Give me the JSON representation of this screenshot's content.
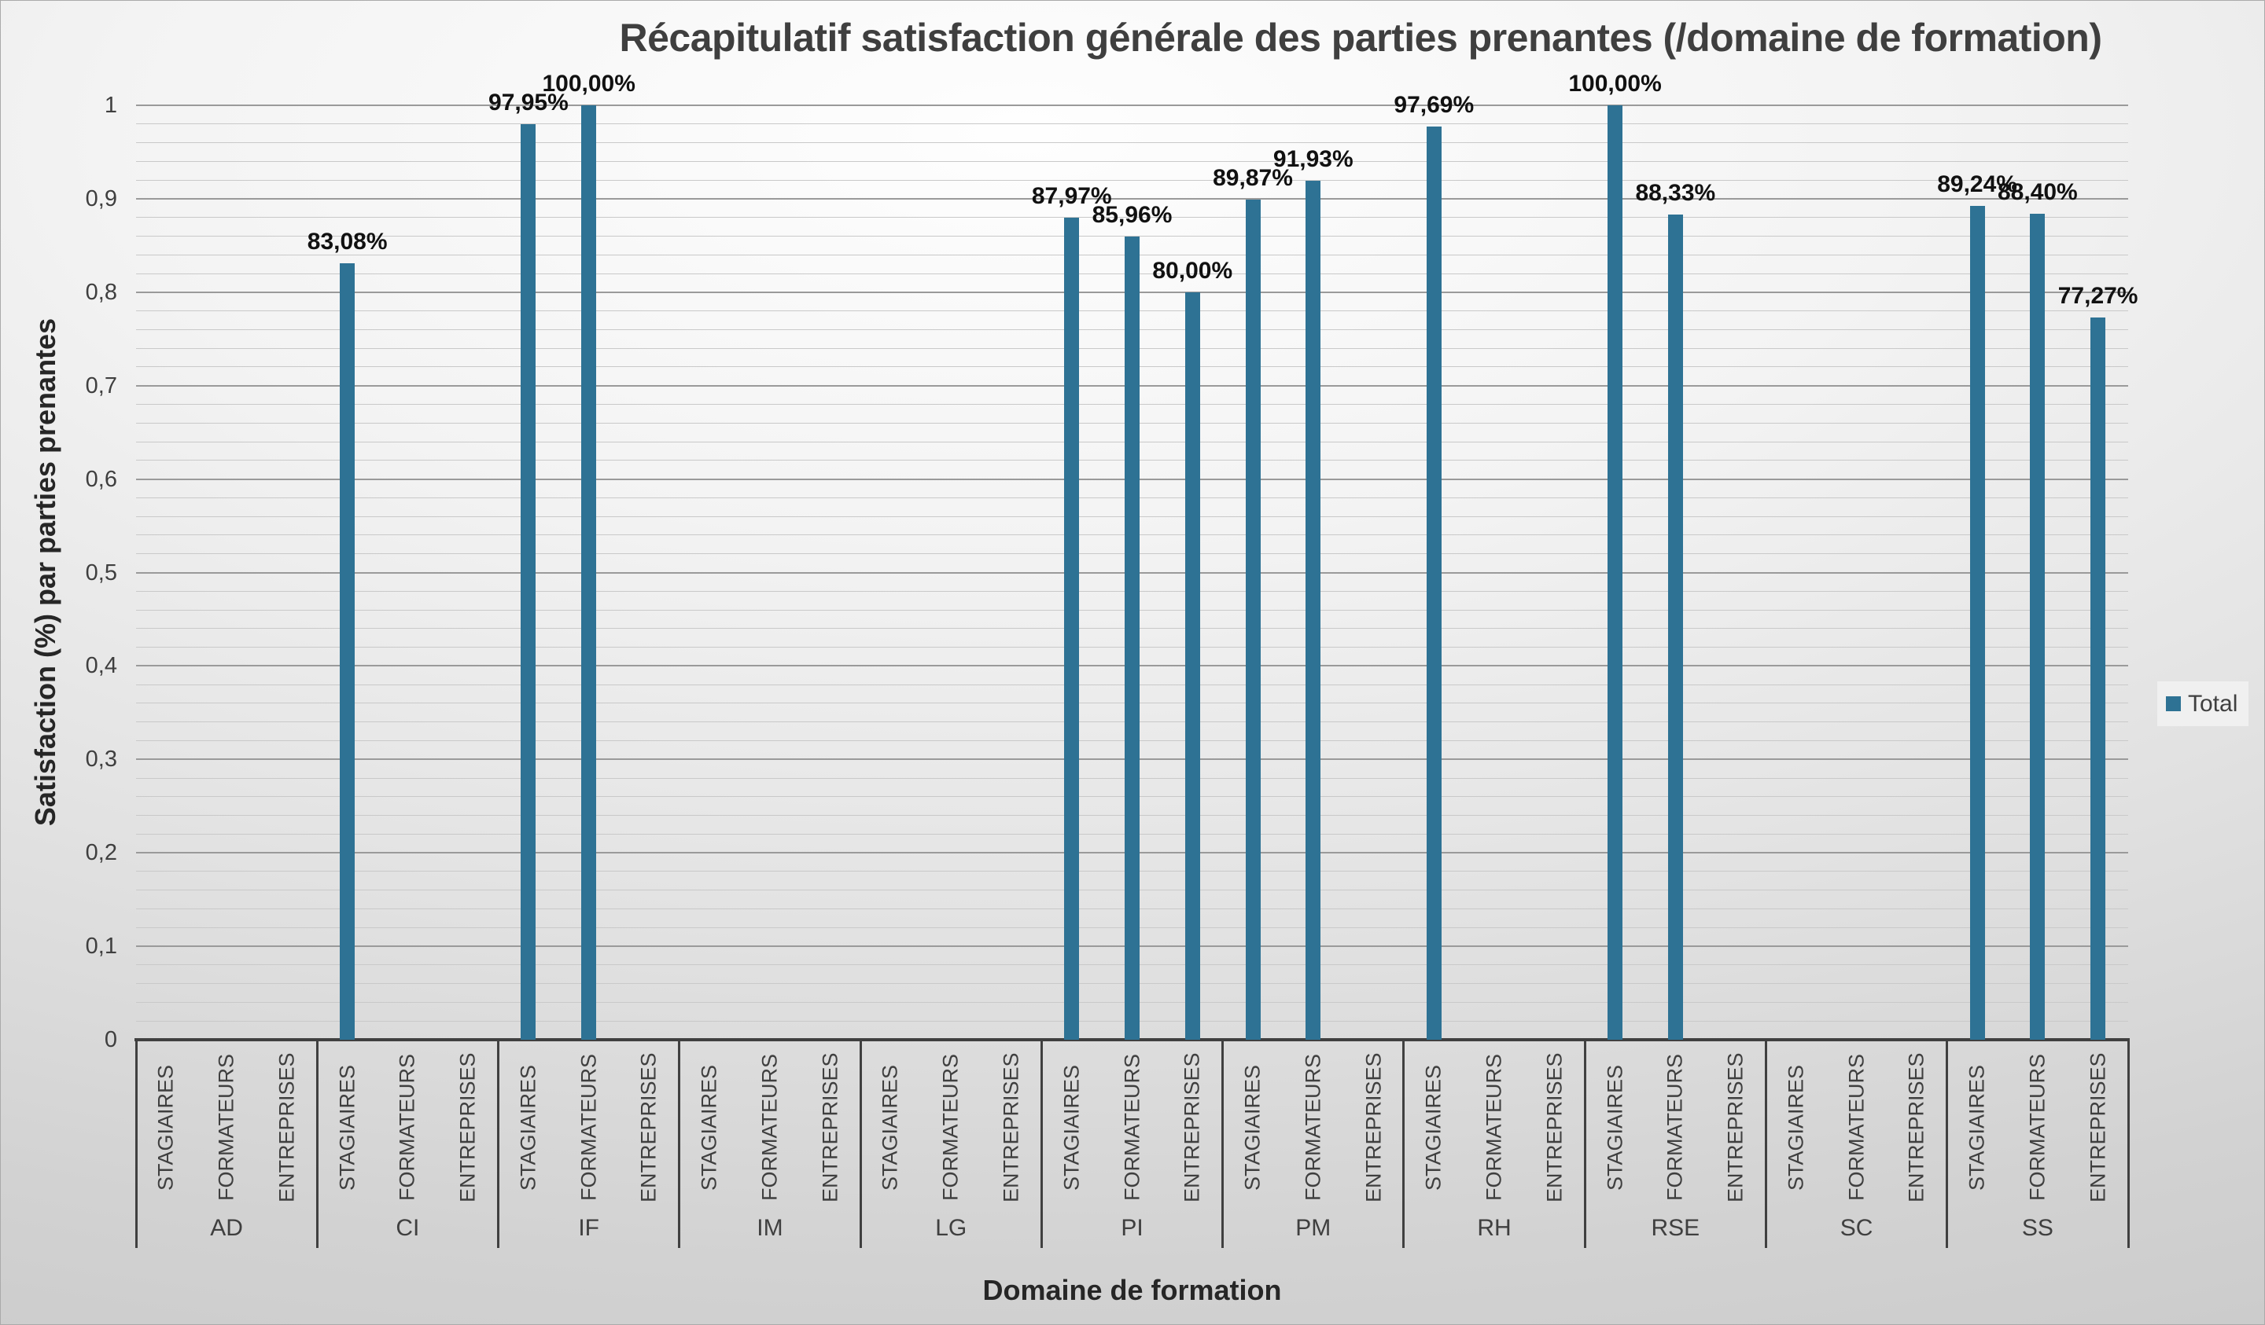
{
  "chart_data": {
    "type": "bar",
    "title": "Récapitulatif satisfaction générale des parties prenantes (/domaine de formation)",
    "xlabel": "Domaine de formation",
    "ylabel": "Satisfaction (%) par parties prenantes",
    "ylim": [
      0,
      1
    ],
    "y_major_unit": 0.1,
    "y_minor_unit": 0.02,
    "grid": true,
    "y_tick_labels": [
      "0",
      "0,1",
      "0,2",
      "0,3",
      "0,4",
      "0,5",
      "0,6",
      "0,7",
      "0,8",
      "0,9",
      "1"
    ],
    "bar_color": "#2E7294",
    "legend": {
      "position": "right",
      "entries": [
        {
          "label": "Total",
          "color": "#2E7294"
        }
      ]
    },
    "subcategories": [
      "STAGIAIRES",
      "FORMATEURS",
      "ENTREPRISES"
    ],
    "groups": [
      {
        "domain": "AD",
        "values": [
          null,
          null,
          null
        ],
        "labels": [
          "",
          "",
          ""
        ]
      },
      {
        "domain": "CI",
        "values": [
          0.8308,
          null,
          null
        ],
        "labels": [
          "83,08%",
          "",
          ""
        ]
      },
      {
        "domain": "IF",
        "values": [
          0.9795,
          1.0,
          null
        ],
        "labels": [
          "97,95%",
          "100,00%",
          ""
        ]
      },
      {
        "domain": "IM",
        "values": [
          null,
          null,
          null
        ],
        "labels": [
          "",
          "",
          ""
        ]
      },
      {
        "domain": "LG",
        "values": [
          null,
          null,
          null
        ],
        "labels": [
          "",
          "",
          ""
        ]
      },
      {
        "domain": "PI",
        "values": [
          0.8797,
          0.8596,
          0.8
        ],
        "labels": [
          "87,97%",
          "85,96%",
          "80,00%"
        ]
      },
      {
        "domain": "PM",
        "values": [
          0.8987,
          0.9193,
          null
        ],
        "labels": [
          "89,87%",
          "91,93%",
          ""
        ]
      },
      {
        "domain": "RH",
        "values": [
          0.9769,
          null,
          null
        ],
        "labels": [
          "97,69%",
          "",
          ""
        ]
      },
      {
        "domain": "RSE",
        "values": [
          1.0,
          0.8833,
          null
        ],
        "labels": [
          "100,00%",
          "88,33%",
          ""
        ]
      },
      {
        "domain": "SC",
        "values": [
          null,
          null,
          null
        ],
        "labels": [
          "",
          "",
          ""
        ]
      },
      {
        "domain": "SS",
        "values": [
          0.8924,
          0.884,
          0.7727
        ],
        "labels": [
          "89,24%",
          "88,40%",
          "77,27%"
        ]
      }
    ]
  }
}
